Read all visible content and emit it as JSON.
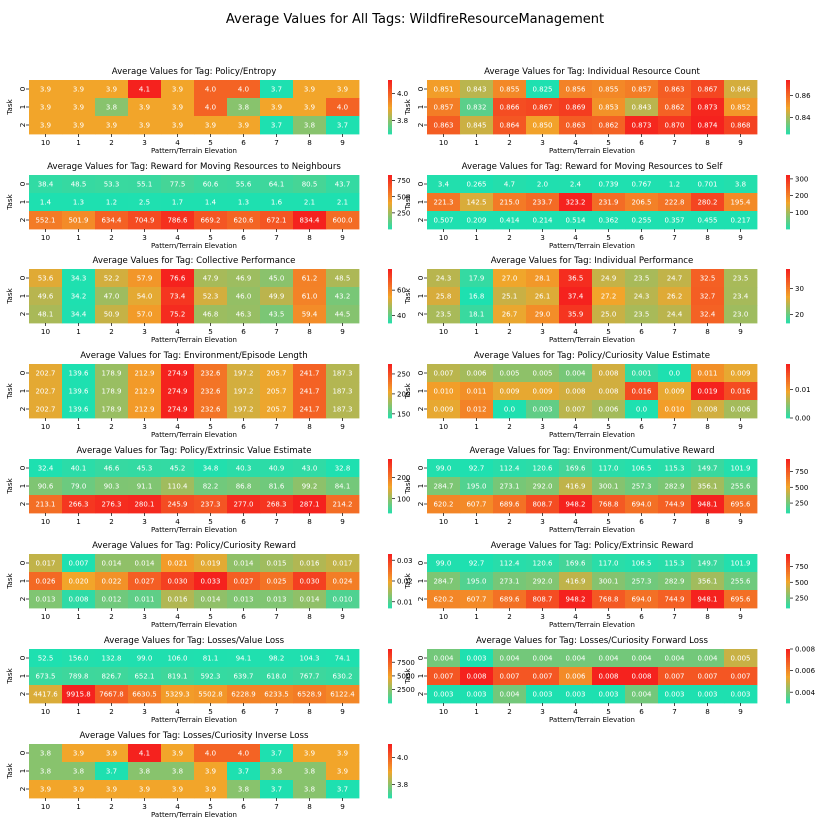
{
  "suptitle": "Average Values for All Tags: WildfireResourceManagement",
  "colors": {
    "low": "#1ee0b0",
    "mid": "#f2a52a",
    "high": "#f5221e"
  },
  "chart_data": [
    {
      "type": "heatmap",
      "title": "Average Values for Tag: Policy/Entropy",
      "xlabel": "Pattern/Terrain Elevation",
      "ylabel": "Task",
      "x": [
        "10",
        "1",
        "2",
        "3",
        "4",
        "5",
        "6",
        "7",
        "8",
        "9"
      ],
      "y": [
        "0",
        "1",
        "2"
      ],
      "labels": [
        [
          "3.9",
          "3.9",
          "3.9",
          "4.1",
          "3.9",
          "4.0",
          "4.0",
          "3.7",
          "3.9",
          "3.9"
        ],
        [
          "3.9",
          "3.9",
          "3.8",
          "3.9",
          "3.9",
          "4.0",
          "3.8",
          "3.9",
          "3.9",
          "4.0"
        ],
        [
          "3.9",
          "3.9",
          "3.9",
          "3.9",
          "3.9",
          "3.9",
          "3.9",
          "3.7",
          "3.8",
          "3.7"
        ]
      ],
      "colorbar_ticks": [
        "3.8",
        "4.0"
      ],
      "colorbar_tick_values": [
        3.8,
        4.0
      ],
      "vmin": 3.7,
      "vmax": 4.1
    },
    {
      "type": "heatmap",
      "title": "Average Values for Tag: Individual Resource Count",
      "xlabel": "Pattern/Terrain Elevation",
      "ylabel": "Task",
      "x": [
        "10",
        "1",
        "2",
        "3",
        "4",
        "5",
        "6",
        "7",
        "8",
        "9"
      ],
      "y": [
        "0",
        "1",
        "2"
      ],
      "labels": [
        [
          "0.851",
          "0.843",
          "0.855",
          "0.825",
          "0.856",
          "0.855",
          "0.857",
          "0.863",
          "0.867",
          "0.846"
        ],
        [
          "0.857",
          "0.832",
          "0.866",
          "0.867",
          "0.869",
          "0.853",
          "0.843",
          "0.862",
          "0.873",
          "0.852"
        ],
        [
          "0.863",
          "0.845",
          "0.864",
          "0.850",
          "0.863",
          "0.862",
          "0.873",
          "0.870",
          "0.874",
          "0.868"
        ]
      ],
      "colorbar_ticks": [
        "0.84",
        "0.86"
      ],
      "colorbar_tick_values": [
        0.84,
        0.86
      ],
      "vmin": 0.825,
      "vmax": 0.874
    },
    {
      "type": "heatmap",
      "title": "Average Values for Tag: Reward for Moving Resources to Neighbours",
      "xlabel": "Pattern/Terrain Elevation",
      "ylabel": "Task",
      "x": [
        "10",
        "1",
        "2",
        "3",
        "4",
        "5",
        "6",
        "7",
        "8",
        "9"
      ],
      "y": [
        "0",
        "1",
        "2"
      ],
      "labels": [
        [
          "38.4",
          "48.5",
          "53.3",
          "55.1",
          "77.5",
          "60.6",
          "55.6",
          "64.1",
          "80.5",
          "43.7"
        ],
        [
          "1.4",
          "1.3",
          "1.2",
          "2.5",
          "1.7",
          "1.4",
          "1.3",
          "1.6",
          "2.1",
          "2.1"
        ],
        [
          "552.1",
          "501.9",
          "634.4",
          "704.9",
          "786.6",
          "669.2",
          "620.6",
          "672.1",
          "834.4",
          "600.0"
        ]
      ],
      "colorbar_ticks": [
        "250",
        "500",
        "750"
      ],
      "colorbar_tick_values": [
        250,
        500,
        750
      ],
      "vmin": 1.2,
      "vmax": 834.4
    },
    {
      "type": "heatmap",
      "title": "Average Values for Tag: Reward for Moving Resources to Self",
      "xlabel": "Pattern/Terrain Elevation",
      "ylabel": "Task",
      "x": [
        "10",
        "1",
        "2",
        "3",
        "4",
        "5",
        "6",
        "7",
        "8",
        "9"
      ],
      "y": [
        "0",
        "1",
        "2"
      ],
      "labels": [
        [
          "3.4",
          "0.265",
          "4.7",
          "2.0",
          "2.4",
          "0.739",
          "0.767",
          "1.2",
          "0.701",
          "3.8"
        ],
        [
          "221.3",
          "142.5",
          "215.0",
          "233.7",
          "323.2",
          "231.9",
          "206.5",
          "222.8",
          "280.2",
          "195.4"
        ],
        [
          "0.507",
          "0.209",
          "0.414",
          "0.214",
          "0.514",
          "0.362",
          "0.255",
          "0.357",
          "0.455",
          "0.217"
        ]
      ],
      "colorbar_ticks": [
        "100",
        "200",
        "300"
      ],
      "colorbar_tick_values": [
        100,
        200,
        300
      ],
      "vmin": 0.209,
      "vmax": 323.2
    },
    {
      "type": "heatmap",
      "title": "Average Values for Tag: Collective Performance",
      "xlabel": "Pattern/Terrain Elevation",
      "ylabel": "Task",
      "x": [
        "10",
        "1",
        "2",
        "3",
        "4",
        "5",
        "6",
        "7",
        "8",
        "9"
      ],
      "y": [
        "0",
        "1",
        "2"
      ],
      "labels": [
        [
          "53.6",
          "34.3",
          "52.2",
          "57.9",
          "76.6",
          "47.9",
          "46.9",
          "45.0",
          "61.2",
          "48.5"
        ],
        [
          "49.6",
          "34.2",
          "47.0",
          "54.0",
          "73.4",
          "52.3",
          "46.0",
          "49.9",
          "61.0",
          "43.2"
        ],
        [
          "48.1",
          "34.4",
          "50.9",
          "57.0",
          "75.2",
          "46.8",
          "46.3",
          "43.5",
          "59.4",
          "44.5"
        ]
      ],
      "colorbar_ticks": [
        "40",
        "60"
      ],
      "colorbar_tick_values": [
        40,
        60
      ],
      "vmin": 34.2,
      "vmax": 76.6
    },
    {
      "type": "heatmap",
      "title": "Average Values for Tag: Individual Performance",
      "xlabel": "Pattern/Terrain Elevation",
      "ylabel": "Task",
      "x": [
        "10",
        "1",
        "2",
        "3",
        "4",
        "5",
        "6",
        "7",
        "8",
        "9"
      ],
      "y": [
        "0",
        "1",
        "2"
      ],
      "labels": [
        [
          "24.3",
          "17.9",
          "27.0",
          "28.1",
          "36.5",
          "24.9",
          "23.5",
          "24.7",
          "32.5",
          "23.5"
        ],
        [
          "25.8",
          "16.8",
          "25.1",
          "26.1",
          "37.4",
          "27.2",
          "24.3",
          "26.2",
          "32.7",
          "23.4"
        ],
        [
          "23.5",
          "18.1",
          "26.7",
          "29.0",
          "35.9",
          "25.0",
          "23.5",
          "24.4",
          "32.4",
          "23.0"
        ]
      ],
      "colorbar_ticks": [
        "20",
        "30"
      ],
      "colorbar_tick_values": [
        20,
        30
      ],
      "vmin": 16.8,
      "vmax": 37.4
    },
    {
      "type": "heatmap",
      "title": "Average Values for Tag: Environment/Episode Length",
      "xlabel": "Pattern/Terrain Elevation",
      "ylabel": "Task",
      "x": [
        "10",
        "1",
        "2",
        "3",
        "4",
        "5",
        "6",
        "7",
        "8",
        "9"
      ],
      "y": [
        "0",
        "1",
        "2"
      ],
      "labels": [
        [
          "202.7",
          "139.6",
          "178.9",
          "212.9",
          "274.9",
          "232.6",
          "197.2",
          "205.7",
          "241.7",
          "187.3"
        ],
        [
          "202.7",
          "139.6",
          "178.9",
          "212.9",
          "274.9",
          "232.6",
          "197.2",
          "205.7",
          "241.7",
          "187.3"
        ],
        [
          "202.7",
          "139.6",
          "178.9",
          "212.9",
          "274.9",
          "232.6",
          "197.2",
          "205.7",
          "241.7",
          "187.3"
        ]
      ],
      "colorbar_ticks": [
        "150",
        "200",
        "250"
      ],
      "colorbar_tick_values": [
        150,
        200,
        250
      ],
      "vmin": 139.6,
      "vmax": 274.9
    },
    {
      "type": "heatmap",
      "title": "Average Values for Tag: Policy/Curiosity Value Estimate",
      "xlabel": "Pattern/Terrain Elevation",
      "ylabel": "Task",
      "x": [
        "10",
        "1",
        "2",
        "3",
        "4",
        "5",
        "6",
        "7",
        "8",
        "9"
      ],
      "y": [
        "0",
        "1",
        "2"
      ],
      "labels": [
        [
          "0.007",
          "0.006",
          "0.005",
          "0.005",
          "0.004",
          "0.008",
          "0.001",
          "0.0",
          "0.011",
          "0.009"
        ],
        [
          "0.010",
          "0.011",
          "0.009",
          "0.009",
          "0.008",
          "0.008",
          "0.016",
          "0.009",
          "0.019",
          "0.016"
        ],
        [
          "0.009",
          "0.012",
          "0.0",
          "0.003",
          "0.007",
          "0.006",
          "0.0",
          "0.010",
          "0.008",
          "0.006"
        ]
      ],
      "colorbar_ticks": [
        "0.00",
        "0.01"
      ],
      "colorbar_tick_values": [
        0.0,
        0.01
      ],
      "vmin": 0.0,
      "vmax": 0.019
    },
    {
      "type": "heatmap",
      "title": "Average Values for Tag: Policy/Extrinsic Value Estimate",
      "xlabel": "Pattern/Terrain Elevation",
      "ylabel": "Task",
      "x": [
        "10",
        "1",
        "2",
        "3",
        "4",
        "5",
        "6",
        "7",
        "8",
        "9"
      ],
      "y": [
        "0",
        "1",
        "2"
      ],
      "labels": [
        [
          "32.4",
          "40.1",
          "46.6",
          "45.3",
          "45.2",
          "34.8",
          "40.3",
          "40.9",
          "43.0",
          "32.8"
        ],
        [
          "90.6",
          "79.0",
          "90.3",
          "91.1",
          "110.4",
          "82.2",
          "86.8",
          "81.6",
          "99.2",
          "84.1"
        ],
        [
          "213.1",
          "266.3",
          "276.3",
          "280.1",
          "245.9",
          "237.3",
          "277.0",
          "268.3",
          "287.1",
          "214.2"
        ]
      ],
      "colorbar_ticks": [
        "100",
        "200"
      ],
      "colorbar_tick_values": [
        100,
        200
      ],
      "vmin": 32.4,
      "vmax": 287.1
    },
    {
      "type": "heatmap",
      "title": "Average Values for Tag: Environment/Cumulative Reward",
      "xlabel": "Pattern/Terrain Elevation",
      "ylabel": "Task",
      "x": [
        "10",
        "1",
        "2",
        "3",
        "4",
        "5",
        "6",
        "7",
        "8",
        "9"
      ],
      "y": [
        "0",
        "1",
        "2"
      ],
      "labels": [
        [
          "99.0",
          "92.7",
          "112.4",
          "120.6",
          "169.6",
          "117.0",
          "106.5",
          "115.3",
          "149.7",
          "101.9"
        ],
        [
          "284.7",
          "195.0",
          "273.1",
          "292.0",
          "416.9",
          "300.1",
          "257.3",
          "282.9",
          "356.1",
          "255.6"
        ],
        [
          "620.2",
          "607.7",
          "689.6",
          "808.7",
          "948.2",
          "768.8",
          "694.0",
          "744.9",
          "948.1",
          "695.6"
        ]
      ],
      "colorbar_ticks": [
        "250",
        "500",
        "750"
      ],
      "colorbar_tick_values": [
        250,
        500,
        750
      ],
      "vmin": 92.7,
      "vmax": 948.2
    },
    {
      "type": "heatmap",
      "title": "Average Values for Tag: Policy/Curiosity Reward",
      "xlabel": "Pattern/Terrain Elevation",
      "ylabel": "Task",
      "x": [
        "10",
        "1",
        "2",
        "3",
        "4",
        "5",
        "6",
        "7",
        "8",
        "9"
      ],
      "y": [
        "0",
        "1",
        "2"
      ],
      "labels": [
        [
          "0.017",
          "0.007",
          "0.014",
          "0.014",
          "0.021",
          "0.019",
          "0.014",
          "0.015",
          "0.016",
          "0.017"
        ],
        [
          "0.026",
          "0.020",
          "0.022",
          "0.027",
          "0.030",
          "0.033",
          "0.027",
          "0.025",
          "0.030",
          "0.024"
        ],
        [
          "0.013",
          "0.008",
          "0.012",
          "0.011",
          "0.016",
          "0.014",
          "0.013",
          "0.013",
          "0.014",
          "0.010"
        ]
      ],
      "colorbar_ticks": [
        "0.01",
        "0.02",
        "0.03"
      ],
      "colorbar_tick_values": [
        0.01,
        0.02,
        0.03
      ],
      "vmin": 0.007,
      "vmax": 0.033
    },
    {
      "type": "heatmap",
      "title": "Average Values for Tag: Policy/Extrinsic Reward",
      "xlabel": "Pattern/Terrain Elevation",
      "ylabel": "Task",
      "x": [
        "10",
        "1",
        "2",
        "3",
        "4",
        "5",
        "6",
        "7",
        "8",
        "9"
      ],
      "y": [
        "0",
        "1",
        "2"
      ],
      "labels": [
        [
          "99.0",
          "92.7",
          "112.4",
          "120.6",
          "169.6",
          "117.0",
          "106.5",
          "115.3",
          "149.7",
          "101.9"
        ],
        [
          "284.7",
          "195.0",
          "273.1",
          "292.0",
          "416.9",
          "300.1",
          "257.3",
          "282.9",
          "356.1",
          "255.6"
        ],
        [
          "620.2",
          "607.7",
          "689.6",
          "808.7",
          "948.2",
          "768.8",
          "694.0",
          "744.9",
          "948.1",
          "695.6"
        ]
      ],
      "colorbar_ticks": [
        "250",
        "500",
        "750"
      ],
      "colorbar_tick_values": [
        250,
        500,
        750
      ],
      "vmin": 92.7,
      "vmax": 948.2
    },
    {
      "type": "heatmap",
      "title": "Average Values for Tag: Losses/Value Loss",
      "xlabel": "Pattern/Terrain Elevation",
      "ylabel": "Task",
      "x": [
        "10",
        "1",
        "2",
        "3",
        "4",
        "5",
        "6",
        "7",
        "8",
        "9"
      ],
      "y": [
        "0",
        "1",
        "2"
      ],
      "labels": [
        [
          "52.5",
          "156.0",
          "132.8",
          "99.0",
          "106.0",
          "81.1",
          "94.1",
          "98.2",
          "104.3",
          "74.1"
        ],
        [
          "673.5",
          "789.8",
          "826.7",
          "652.1",
          "819.1",
          "592.3",
          "639.7",
          "618.0",
          "767.7",
          "630.2"
        ],
        [
          "4417.6",
          "9915.8",
          "7667.8",
          "6630.5",
          "5329.3",
          "5502.8",
          "6228.9",
          "6233.5",
          "6528.9",
          "6122.4"
        ]
      ],
      "colorbar_ticks": [
        "2500",
        "5000",
        "7500"
      ],
      "colorbar_tick_values": [
        2500,
        5000,
        7500
      ],
      "vmin": 52.5,
      "vmax": 9915.8
    },
    {
      "type": "heatmap",
      "title": "Average Values for Tag: Losses/Curiosity Forward Loss",
      "xlabel": "Pattern/Terrain Elevation",
      "ylabel": "Task",
      "x": [
        "10",
        "1",
        "2",
        "3",
        "4",
        "5",
        "6",
        "7",
        "8",
        "9"
      ],
      "y": [
        "0",
        "1",
        "2"
      ],
      "labels": [
        [
          "0.004",
          "0.003",
          "0.004",
          "0.004",
          "0.004",
          "0.004",
          "0.004",
          "0.004",
          "0.004",
          "0.005"
        ],
        [
          "0.007",
          "0.008",
          "0.007",
          "0.007",
          "0.006",
          "0.008",
          "0.008",
          "0.007",
          "0.007",
          "0.007"
        ],
        [
          "0.003",
          "0.003",
          "0.004",
          "0.003",
          "0.003",
          "0.003",
          "0.004",
          "0.003",
          "0.003",
          "0.003"
        ]
      ],
      "colorbar_ticks": [
        "0.004",
        "0.006",
        "0.008"
      ],
      "colorbar_tick_values": [
        0.004,
        0.006,
        0.008
      ],
      "vmin": 0.003,
      "vmax": 0.008
    },
    {
      "type": "heatmap",
      "title": "Average Values for Tag: Losses/Curiosity Inverse Loss",
      "xlabel": "Pattern/Terrain Elevation",
      "ylabel": "Task",
      "x": [
        "10",
        "1",
        "2",
        "3",
        "4",
        "5",
        "6",
        "7",
        "8",
        "9"
      ],
      "y": [
        "0",
        "1",
        "2"
      ],
      "labels": [
        [
          "3.8",
          "3.9",
          "3.9",
          "4.1",
          "3.9",
          "4.0",
          "4.0",
          "3.7",
          "3.9",
          "3.9"
        ],
        [
          "3.8",
          "3.8",
          "3.7",
          "3.8",
          "3.8",
          "3.9",
          "3.7",
          "3.8",
          "3.8",
          "3.9"
        ],
        [
          "3.9",
          "3.9",
          "3.9",
          "3.9",
          "3.9",
          "3.9",
          "3.8",
          "3.7",
          "3.8",
          "3.7"
        ]
      ],
      "colorbar_ticks": [
        "3.8",
        "4.0"
      ],
      "colorbar_tick_values": [
        3.8,
        4.0
      ],
      "vmin": 3.7,
      "vmax": 4.1
    }
  ]
}
